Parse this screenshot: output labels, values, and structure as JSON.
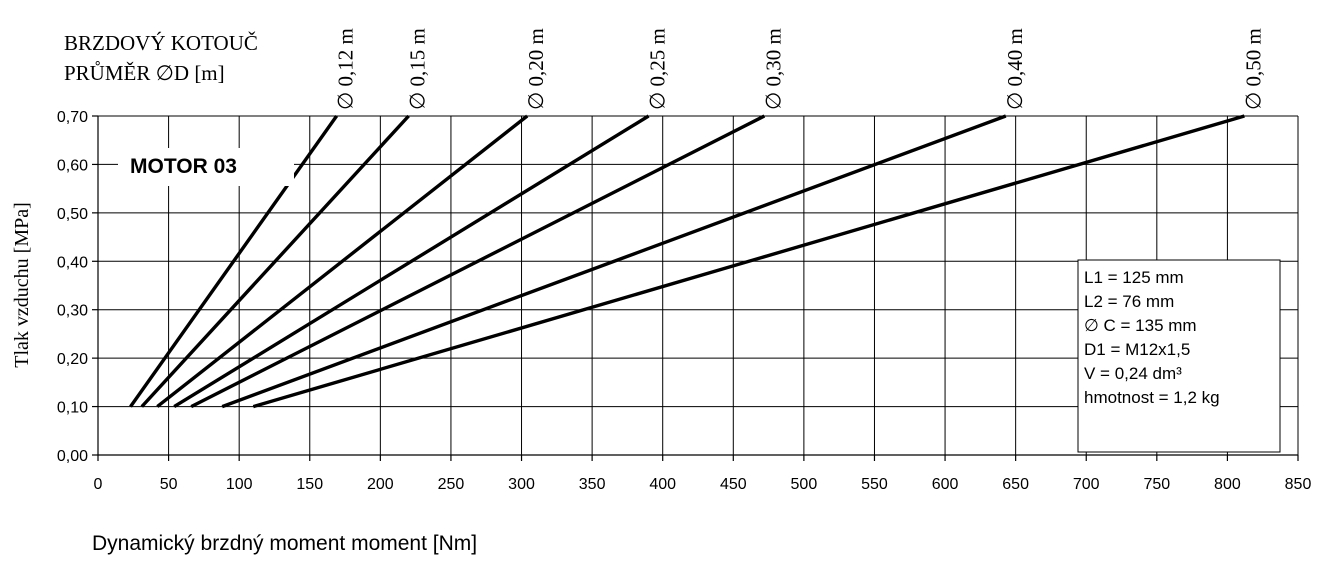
{
  "chart_data": {
    "type": "line",
    "title_lines": [
      "BRZDOVÝ KOTOUČ",
      "PRŮMĚR  ∅D [m]"
    ],
    "annotation": "MOTOR 03",
    "xlabel": "Dynamický brzdný moment moment  [Nm]",
    "ylabel": "Tlak vzduchu [MPa]",
    "xlim": [
      0,
      850
    ],
    "ylim": [
      0,
      0.7
    ],
    "x_ticks": [
      0,
      50,
      100,
      150,
      200,
      250,
      300,
      350,
      400,
      450,
      500,
      550,
      600,
      650,
      700,
      750,
      800,
      850
    ],
    "y_ticks": [
      0,
      0.1,
      0.2,
      0.3,
      0.4,
      0.5,
      0.6,
      0.7
    ],
    "y_tick_labels": [
      "0,00",
      "0,10",
      "0,20",
      "0,30",
      "0,40",
      "0,50",
      "0,60",
      "0,70"
    ],
    "grid": true,
    "series": [
      {
        "name": "∅ 0,12 m",
        "points": [
          [
            23,
            0.1
          ],
          [
            169,
            0.7
          ]
        ]
      },
      {
        "name": "∅ 0,15 m",
        "points": [
          [
            31,
            0.1
          ],
          [
            220,
            0.7
          ]
        ]
      },
      {
        "name": "∅ 0,20 m",
        "points": [
          [
            42,
            0.1
          ],
          [
            304,
            0.7
          ]
        ]
      },
      {
        "name": "∅ 0,25 m",
        "points": [
          [
            54,
            0.1
          ],
          [
            390,
            0.7
          ]
        ]
      },
      {
        "name": "∅ 0,30 m",
        "points": [
          [
            66,
            0.1
          ],
          [
            472,
            0.7
          ]
        ]
      },
      {
        "name": "∅ 0,40 m",
        "points": [
          [
            88,
            0.1
          ],
          [
            643,
            0.7
          ]
        ]
      },
      {
        "name": "∅ 0,50 m",
        "points": [
          [
            110,
            0.1
          ],
          [
            812,
            0.7
          ]
        ]
      }
    ],
    "specs": [
      "L1 = 125 mm",
      "L2 =  76 mm",
      "∅ C = 135 mm",
      "D1 = M12x1,5",
      "V = 0,24 dm³",
      "hmotnost = 1,2 kg"
    ]
  }
}
